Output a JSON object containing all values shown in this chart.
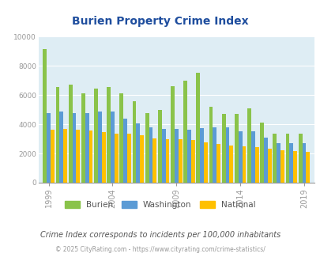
{
  "title": "Burien Property Crime Index",
  "subtitle": "Crime Index corresponds to incidents per 100,000 inhabitants",
  "footer": "© 2025 CityRating.com - https://www.cityrating.com/crime-statistics/",
  "years": [
    1999,
    2000,
    2001,
    2002,
    2003,
    2004,
    2005,
    2006,
    2007,
    2008,
    2009,
    2010,
    2011,
    2012,
    2013,
    2014,
    2015,
    2016,
    2017,
    2018,
    2019
  ],
  "burien": [
    9150,
    6550,
    6700,
    6100,
    6450,
    6550,
    6100,
    5550,
    4750,
    5000,
    6600,
    7000,
    7500,
    5200,
    4700,
    4700,
    5100,
    4100,
    3350,
    3350,
    3350
  ],
  "washington": [
    4750,
    4850,
    4750,
    4750,
    4850,
    4850,
    4400,
    4050,
    3800,
    3700,
    3700,
    3650,
    3750,
    3800,
    3800,
    3500,
    3500,
    3100,
    2700,
    2700,
    2700
  ],
  "national": [
    3600,
    3700,
    3600,
    3550,
    3450,
    3350,
    3350,
    3250,
    3050,
    3000,
    2950,
    2900,
    2750,
    2650,
    2550,
    2500,
    2450,
    2350,
    2200,
    2150,
    2100
  ],
  "burien_color": "#8ac34a",
  "washington_color": "#5b9bd5",
  "national_color": "#ffc000",
  "background_color": "#deedf4",
  "title_color": "#1f4e9e",
  "axis_color": "#999999",
  "text_color": "#555555",
  "ylim": [
    0,
    10000
  ],
  "yticks": [
    0,
    2000,
    4000,
    6000,
    8000,
    10000
  ],
  "xticks": [
    1999,
    2004,
    2009,
    2014,
    2019
  ]
}
